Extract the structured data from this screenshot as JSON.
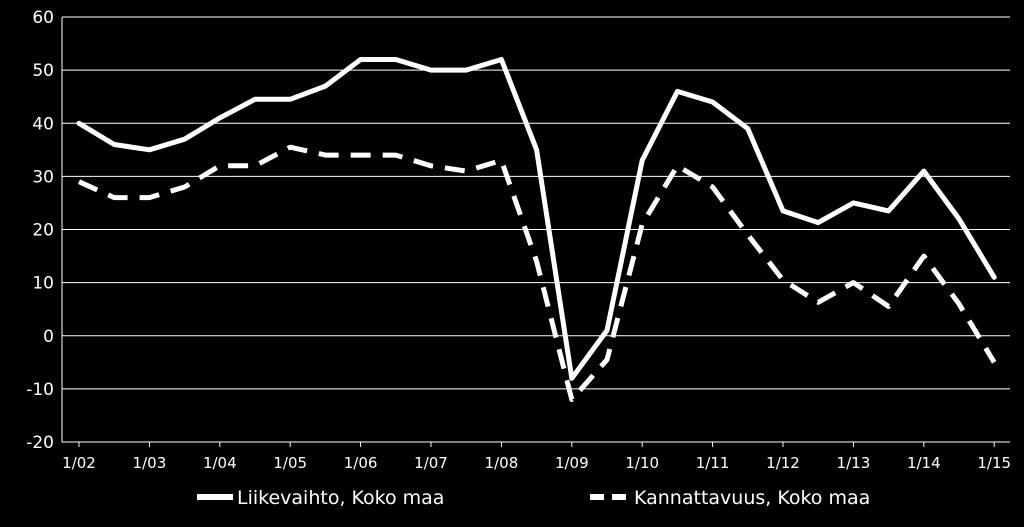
{
  "chart_data": {
    "type": "line",
    "title": "",
    "xlabel": "",
    "ylabel": "",
    "ylim": [
      -20,
      60
    ],
    "yticks": [
      -20,
      -10,
      0,
      10,
      20,
      30,
      40,
      50,
      60
    ],
    "grid": "horizontal",
    "legend_position": "bottom",
    "colors": {
      "background": "#000000",
      "lines": "#ffffff",
      "grid": "#ffffff"
    },
    "categories": [
      "1/02",
      "7/02",
      "1/03",
      "7/03",
      "1/04",
      "7/04",
      "1/05",
      "7/05",
      "1/06",
      "7/06",
      "1/07",
      "7/07",
      "1/08",
      "7/08",
      "1/09",
      "7/09",
      "1/10",
      "7/10",
      "1/11",
      "7/11",
      "1/12",
      "7/12",
      "1/13",
      "7/13",
      "1/14",
      "7/14",
      "1/15"
    ],
    "tick_labels": [
      "1/02",
      "1/03",
      "1/04",
      "1/05",
      "1/06",
      "1/07",
      "1/08",
      "1/09",
      "1/10",
      "1/11",
      "1/12",
      "1/13",
      "1/14",
      "1/15"
    ],
    "series": [
      {
        "name": "Liikevaihto, Koko maa",
        "style": "solid",
        "values": [
          40,
          36,
          35,
          37,
          41,
          44.5,
          44.5,
          47,
          52,
          52,
          50,
          50,
          52,
          35,
          -8,
          1,
          33,
          46,
          44,
          39,
          23.5,
          21.3,
          25,
          23.5,
          31,
          22,
          11
        ]
      },
      {
        "name": "Kannattavuus, Koko maa",
        "style": "dashed",
        "values": [
          29,
          26,
          26,
          28,
          32,
          32,
          35.5,
          34,
          34,
          34,
          32,
          31,
          33,
          14,
          -12,
          -4.5,
          21,
          32,
          28,
          19,
          10.5,
          6.3,
          10,
          5.5,
          15,
          6,
          -5
        ]
      }
    ]
  }
}
